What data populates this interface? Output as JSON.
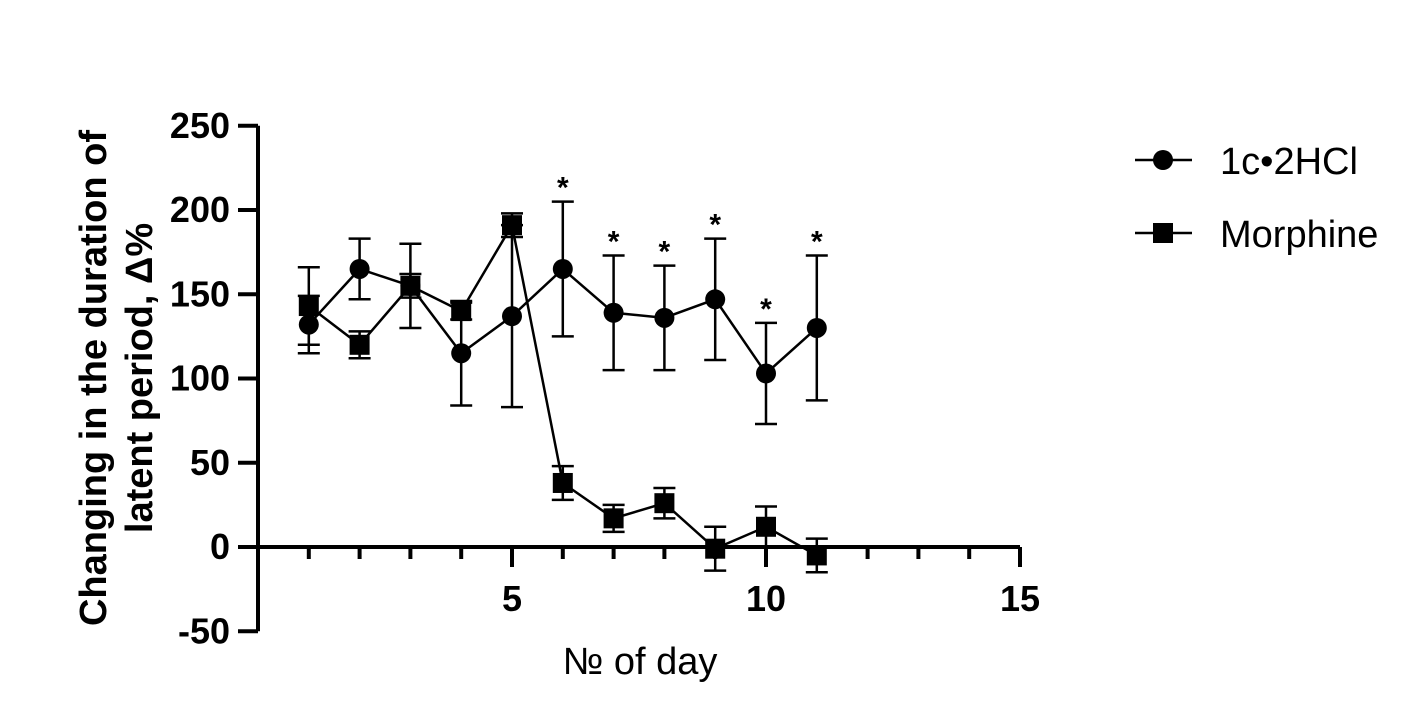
{
  "chart_data": {
    "type": "line",
    "xlabel": "№ of day",
    "ylabel_lines": [
      "Changing in the duration of",
      "latent period, Δ%"
    ],
    "xlim": [
      0,
      15
    ],
    "ylim": [
      -50,
      250
    ],
    "x_ticks": [
      5,
      10,
      15
    ],
    "y_ticks": [
      -50,
      0,
      50,
      100,
      150,
      200,
      250
    ],
    "grid": false,
    "legend_position": "right",
    "series": [
      {
        "name": "1c•2HCl",
        "marker": "circle",
        "x": [
          1,
          2,
          3,
          4,
          5,
          6,
          7,
          8,
          9,
          10,
          11
        ],
        "y": [
          132,
          165,
          155,
          115,
          137,
          165,
          139,
          136,
          147,
          103,
          130
        ],
        "err": [
          17,
          18,
          25,
          31,
          54,
          40,
          34,
          31,
          36,
          30,
          43
        ]
      },
      {
        "name": "Morphine",
        "marker": "square",
        "x": [
          1,
          2,
          3,
          4,
          5,
          6,
          7,
          8,
          9,
          10,
          11
        ],
        "y": [
          143,
          120,
          155,
          140,
          191,
          38,
          17,
          26,
          -1,
          12,
          -5
        ],
        "err": [
          23,
          8,
          7,
          5,
          7,
          10,
          8,
          9,
          13,
          12,
          10
        ]
      }
    ],
    "annotations": [
      {
        "x": 6,
        "text": "*"
      },
      {
        "x": 7,
        "text": "*"
      },
      {
        "x": 8,
        "text": "*"
      },
      {
        "x": 9,
        "text": "*"
      },
      {
        "x": 10,
        "text": "*"
      },
      {
        "x": 11,
        "text": "*"
      }
    ]
  }
}
